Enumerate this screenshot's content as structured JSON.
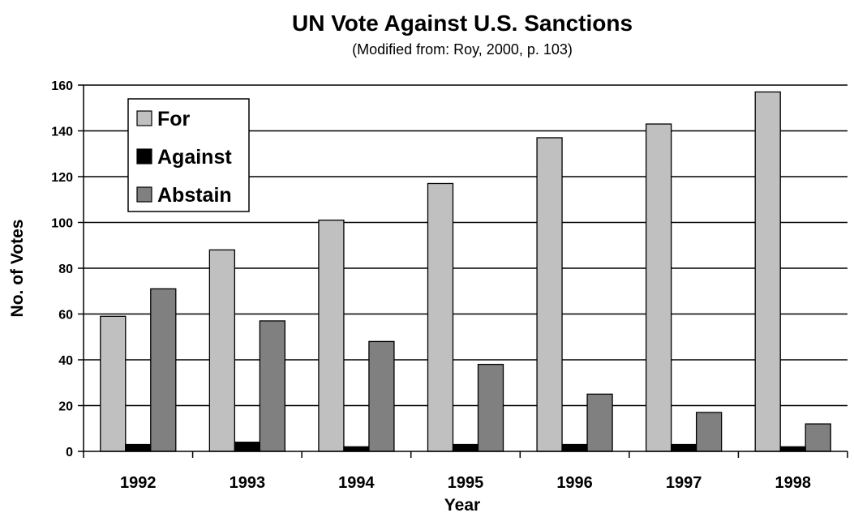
{
  "chart_data": {
    "type": "bar",
    "title": "UN Vote Against U.S. Sanctions",
    "subtitle": "(Modified from: Roy, 2000, p. 103)",
    "xlabel": "Year",
    "ylabel": "No. of Votes",
    "ylim": [
      0,
      160
    ],
    "yticks": [
      0,
      20,
      40,
      60,
      80,
      100,
      120,
      140,
      160
    ],
    "grid": true,
    "legend_position": "top-left",
    "categories": [
      "1992",
      "1993",
      "1994",
      "1995",
      "1996",
      "1997",
      "1998"
    ],
    "series": [
      {
        "name": "For",
        "color": "#c0c0c0",
        "values": [
          59,
          88,
          101,
          117,
          137,
          143,
          157
        ]
      },
      {
        "name": "Against",
        "color": "#000000",
        "values": [
          3,
          4,
          2,
          3,
          3,
          3,
          2
        ]
      },
      {
        "name": "Abstain",
        "color": "#808080",
        "values": [
          71,
          57,
          48,
          38,
          25,
          17,
          12
        ]
      }
    ]
  }
}
